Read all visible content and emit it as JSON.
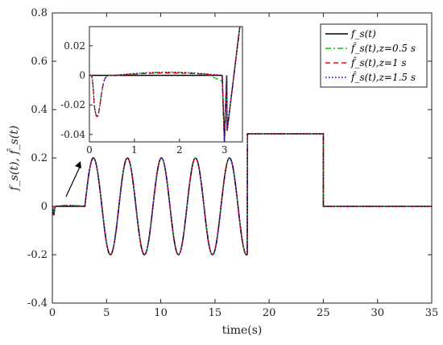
{
  "chart_data": {
    "type": "line",
    "xlabel": "time(s)",
    "ylabel": "f_s(t), f̂_s(t)",
    "xlim": [
      0,
      35
    ],
    "ylim": [
      -0.4,
      0.8
    ],
    "xticks": [
      "0",
      "5",
      "10",
      "15",
      "20",
      "25",
      "30",
      "35"
    ],
    "yticks": [
      "-0.4",
      "-0.2",
      "0",
      "0.2",
      "0.4",
      "0.6",
      "0.8"
    ],
    "legend_position": "top-right",
    "series": [
      {
        "name": "f_s(t)",
        "color": "#000000",
        "dash": "solid"
      },
      {
        "name": "f̂_s(t), z=0.5 s",
        "color": "#00cc00",
        "dash": "dashdot"
      },
      {
        "name": "f̂_s(t), z=1 s",
        "color": "#ff0000",
        "dash": "dashed"
      },
      {
        "name": "f̂_s(t), z=1.5 s",
        "color": "#0000cc",
        "dash": "dotted"
      }
    ],
    "signal": {
      "segments": [
        {
          "from": 0,
          "to": 3,
          "kind": "transient",
          "min": -0.037
        },
        {
          "from": 3,
          "to": 18,
          "kind": "sine",
          "amplitude": 0.2,
          "period": 3.14
        },
        {
          "from": 18,
          "to": 25,
          "kind": "constant",
          "value": 0.3
        },
        {
          "from": 25,
          "to": 35,
          "kind": "constant",
          "value": 0
        }
      ]
    },
    "inset": {
      "xlim": [
        0,
        3.4
      ],
      "ylim": [
        -0.045,
        0.033
      ],
      "xticks": [
        "0",
        "1",
        "2",
        "3"
      ],
      "yticks": [
        "-0.04",
        "-0.02",
        "0",
        "0.02"
      ]
    }
  },
  "legend": {
    "entries": [
      "f_s(t)",
      "f̂_s(t),z=0.5 s",
      "f̂_s(t),z=1 s",
      "f̂_s(t),z=1.5 s"
    ]
  }
}
